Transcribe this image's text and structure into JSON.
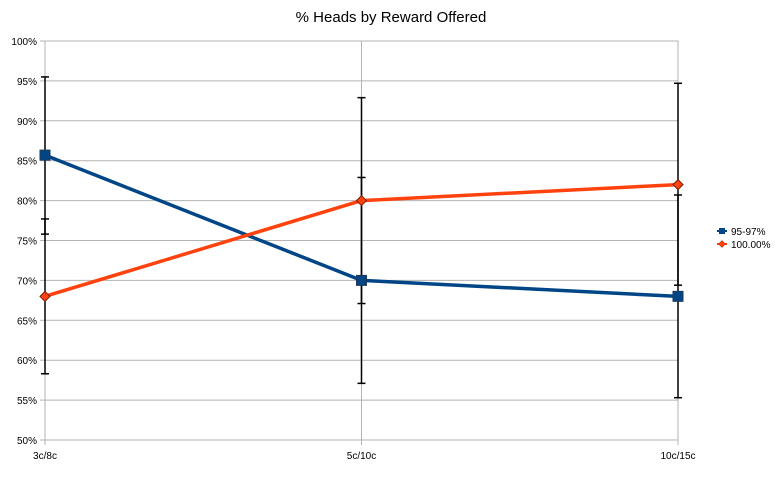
{
  "chart_data": {
    "type": "line",
    "title": "% Heads by Reward Offered",
    "xlabel": "",
    "ylabel": "",
    "categories": [
      "3c/8c",
      "5c/10c",
      "10c/15c"
    ],
    "ylim": [
      0.5,
      1.0
    ],
    "yticks": [
      0.5,
      0.55,
      0.6,
      0.65,
      0.7,
      0.75,
      0.8,
      0.85,
      0.9,
      0.95,
      1.0
    ],
    "ytick_labels": [
      "50%",
      "55%",
      "60%",
      "65%",
      "70%",
      "75%",
      "80%",
      "85%",
      "90%",
      "95%",
      "100%"
    ],
    "grid": true,
    "legend_position": "right",
    "series": [
      {
        "name": "95-97%",
        "color": "#004586",
        "marker": "square",
        "values": [
          0.857,
          0.7,
          0.68
        ],
        "err_low": [
          0.758,
          0.571,
          0.553
        ],
        "err_high": [
          0.955,
          0.829,
          0.807
        ]
      },
      {
        "name": "100.00%",
        "color": "#ff420e",
        "marker": "diamond",
        "values": [
          0.68,
          0.8,
          0.82
        ],
        "err_low": [
          0.583,
          0.671,
          0.694
        ],
        "err_high": [
          0.777,
          0.929,
          0.947
        ]
      }
    ]
  }
}
